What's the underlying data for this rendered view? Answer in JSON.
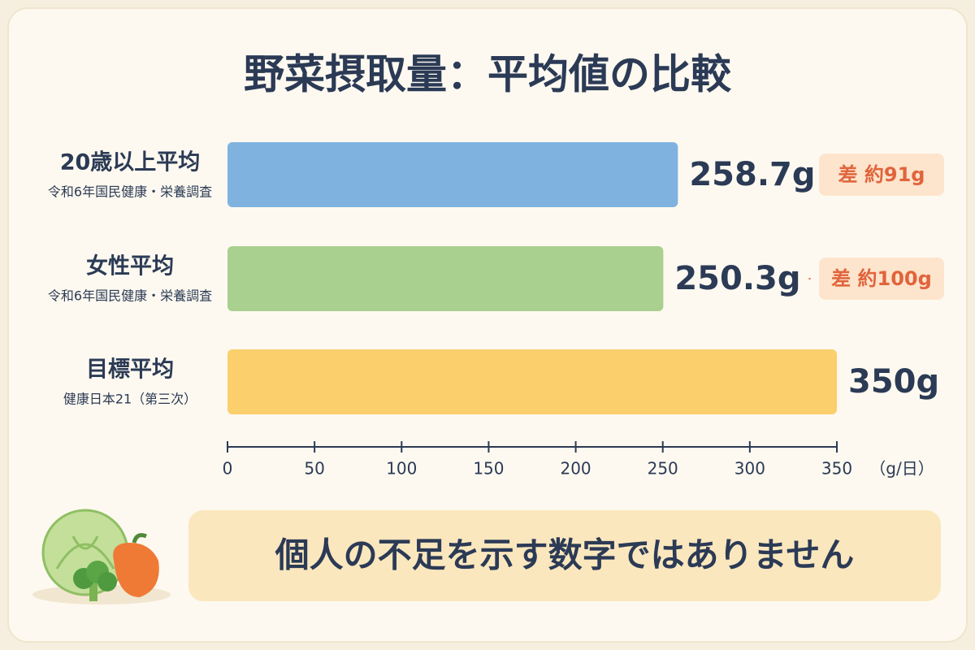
{
  "chart_data": {
    "type": "bar",
    "orientation": "horizontal",
    "title": "野菜摂取量：平均値の比較",
    "categories": [
      "20歳以上平均",
      "女性平均",
      "目標平均"
    ],
    "category_sources": [
      "令和6年国民健康・栄養調査",
      "令和6年国民健康・栄養調査",
      "健康日本21（第三次）"
    ],
    "values": [
      258.7,
      250.3,
      350
    ],
    "value_labels": [
      "258.7g",
      "250.3g",
      "350g"
    ],
    "gap_labels": [
      "差 約91g",
      "差 約100g",
      null
    ],
    "colors": [
      "#7fb2df",
      "#a9d08e",
      "#fbcf6c"
    ],
    "xlim": [
      0,
      350
    ],
    "xticks": [
      0,
      50,
      100,
      150,
      200,
      250,
      300,
      350
    ],
    "x_label": "（g/日）",
    "footer": "個人の不足を示す数字ではありません"
  }
}
